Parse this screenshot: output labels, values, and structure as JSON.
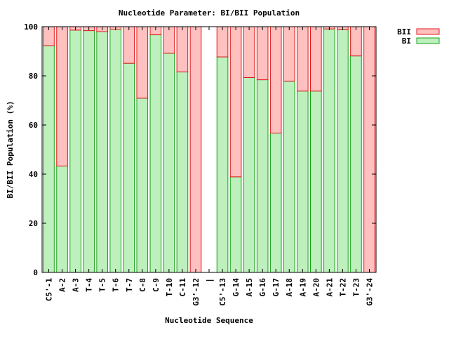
{
  "chart_data": {
    "type": "bar",
    "stacked": true,
    "title": "Nucleotide Parameter: BI/BII Population",
    "xlabel": "Nucleotide Sequence",
    "ylabel": "BI/BII Population (%)",
    "ylim": [
      0,
      100
    ],
    "yticks": [
      0,
      20,
      40,
      60,
      80,
      100
    ],
    "grid": false,
    "legend_position": "top-right outside",
    "categories": [
      "C5'-1",
      "A-2",
      "A-3",
      "T-4",
      "T-5",
      "T-6",
      "T-7",
      "C-8",
      "C-9",
      "T-10",
      "C-11",
      "G3'-12",
      "|",
      "C5'-13",
      "G-14",
      "A-15",
      "G-16",
      "G-17",
      "A-18",
      "A-19",
      "A-20",
      "A-21",
      "T-22",
      "T-23",
      "G3'-24"
    ],
    "series": [
      {
        "name": "BI",
        "color": "#bdf0bd",
        "edge": "#18a018",
        "values": [
          92.3,
          43.3,
          98.6,
          98.4,
          98.0,
          99.0,
          85.1,
          70.9,
          96.7,
          89.2,
          81.6,
          0,
          null,
          87.7,
          38.9,
          79.3,
          78.4,
          56.7,
          77.8,
          73.8,
          73.8,
          99.1,
          98.8,
          88.1,
          0
        ]
      },
      {
        "name": "BII",
        "color": "#ffc0c0",
        "edge": "#e01818",
        "values": [
          7.7,
          56.7,
          1.4,
          1.6,
          2.0,
          1.0,
          14.9,
          29.1,
          3.3,
          10.8,
          18.4,
          100,
          null,
          12.3,
          61.1,
          20.7,
          21.6,
          43.3,
          22.2,
          26.2,
          26.2,
          0.9,
          1.2,
          11.9,
          100
        ]
      }
    ],
    "legend_order": [
      "BII",
      "BI"
    ]
  }
}
